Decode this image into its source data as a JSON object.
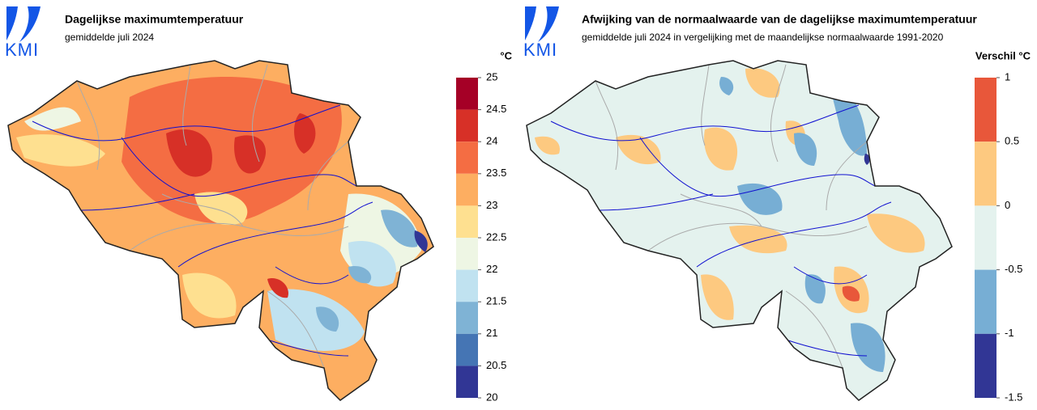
{
  "panels": [
    {
      "logo": "KMI",
      "title": "Dagelijkse maximumtemperatuur",
      "subtitle": "gemiddelde juli 2024",
      "legend": {
        "unit": "°C",
        "ticks": [
          25,
          24.5,
          24,
          23.5,
          23,
          22.5,
          22,
          21.5,
          21,
          20.5,
          20
        ],
        "bin_colors": [
          "#a50026",
          "#d73027",
          "#f46d43",
          "#fdae61",
          "#fee090",
          "#eef6e4",
          "#c0e2f0",
          "#7fb3d5",
          "#4575b4",
          "#313695"
        ]
      }
    },
    {
      "logo": "KMI",
      "title": "Afwijking van de normaalwaarde van de dagelijkse maximumtemperatuur",
      "subtitle": "gemiddelde juli 2024 in vergelijking met de maandelijkse normaalwaarde 1991-2020",
      "legend": {
        "unit": "Verschil °C",
        "ticks": [
          1,
          0.5,
          0,
          -0.5,
          -1,
          -1.5
        ],
        "bin_colors": [
          "#e8573a",
          "#fdc980",
          "#e4f2ee",
          "#77aed4",
          "#313695"
        ]
      }
    }
  ]
}
